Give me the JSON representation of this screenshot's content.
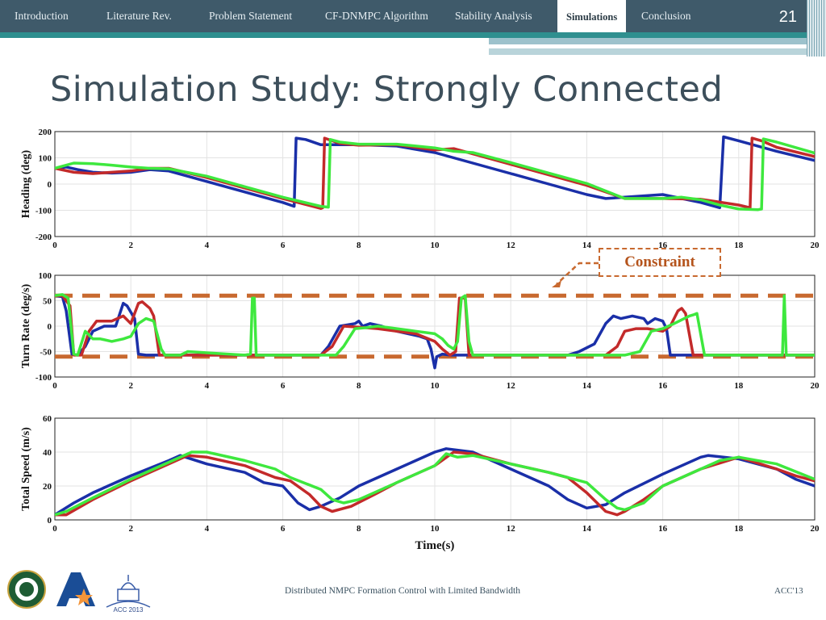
{
  "nav": {
    "items": [
      {
        "label": "Introduction",
        "active": false
      },
      {
        "label": "Literature Rev.",
        "active": false
      },
      {
        "label": "Problem Statement",
        "active": false
      },
      {
        "label": "CF-DNMPC Algorithm",
        "active": false
      },
      {
        "label": "Stability Analysis",
        "active": false
      },
      {
        "label": "Simulations",
        "active": true
      },
      {
        "label": "Conclusion",
        "active": false
      }
    ],
    "slide_number": "21"
  },
  "title": "Simulation Study: Strongly Connected",
  "annotation": "Constraint",
  "footer": {
    "text": "Distributed NMPC Formation Control with Limited Bandwidth",
    "right": "ACC'13"
  },
  "logos": {
    "acc_label": "ACC 2013"
  },
  "colors": {
    "blue": "#1a2fa8",
    "red": "#c32a2a",
    "green": "#3ee83e",
    "constraint": "#c8692f",
    "header": "#3f5a6a",
    "teal": "#2f8f8f"
  },
  "chart_data": [
    {
      "type": "line",
      "ylabel": "Heading (deg)",
      "xlabel": "",
      "xlim": [
        0,
        20
      ],
      "ylim": [
        -200,
        200
      ],
      "yticks": [
        -200,
        -100,
        0,
        100,
        200
      ],
      "xticks": [
        0,
        2,
        4,
        6,
        8,
        10,
        12,
        14,
        16,
        18,
        20
      ],
      "grid": true,
      "series": [
        {
          "color": "blue",
          "x": [
            0,
            0.3,
            0.6,
            1,
            1.5,
            2,
            2.5,
            3,
            4,
            5,
            6,
            6.3,
            6.35,
            6.6,
            7,
            8,
            9,
            10,
            11,
            12,
            13,
            14,
            14.5,
            15,
            15.5,
            16,
            16.5,
            17,
            17.5,
            17.6,
            18,
            19,
            20
          ],
          "y": [
            60,
            65,
            55,
            45,
            42,
            45,
            55,
            50,
            10,
            -30,
            -70,
            -85,
            175,
            170,
            150,
            150,
            145,
            120,
            80,
            40,
            0,
            -40,
            -55,
            -50,
            -45,
            -40,
            -55,
            -70,
            -90,
            180,
            165,
            125,
            90
          ]
        },
        {
          "color": "red",
          "x": [
            0,
            0.5,
            1,
            1.5,
            2,
            2.5,
            3,
            4,
            5,
            6,
            7,
            7.05,
            7.1,
            7.5,
            8,
            9,
            10,
            10.5,
            11,
            12,
            13,
            14,
            15,
            16,
            17,
            18,
            18.3,
            18.35,
            18.6,
            19,
            20
          ],
          "y": [
            60,
            45,
            40,
            45,
            50,
            60,
            60,
            25,
            -15,
            -55,
            -93,
            -90,
            175,
            155,
            148,
            150,
            130,
            135,
            115,
            75,
            35,
            -5,
            -55,
            -55,
            -58,
            -80,
            -90,
            175,
            165,
            140,
            105
          ]
        },
        {
          "color": "green",
          "x": [
            0,
            0.5,
            1,
            1.5,
            2,
            2.5,
            3,
            4,
            5,
            6,
            7,
            7.2,
            7.25,
            7.5,
            8,
            9,
            10,
            10.5,
            11,
            12,
            13,
            14,
            15,
            16,
            16.5,
            17,
            17.5,
            18,
            18.5,
            18.6,
            18.65,
            19,
            20
          ],
          "y": [
            60,
            80,
            78,
            72,
            65,
            60,
            58,
            30,
            -10,
            -50,
            -85,
            -88,
            170,
            160,
            152,
            152,
            138,
            125,
            120,
            82,
            42,
            2,
            -55,
            -55,
            -50,
            -60,
            -80,
            -95,
            -98,
            -95,
            172,
            160,
            118
          ]
        }
      ]
    },
    {
      "type": "line",
      "ylabel": "Turn Rate (deg/s)",
      "xlabel": "",
      "xlim": [
        0,
        20
      ],
      "ylim": [
        -100,
        100
      ],
      "yticks": [
        -100,
        -50,
        0,
        50,
        100
      ],
      "xticks": [
        0,
        2,
        4,
        6,
        8,
        10,
        12,
        14,
        16,
        18,
        20
      ],
      "grid": true,
      "constraints": [
        60,
        -60
      ],
      "series": [
        {
          "color": "blue",
          "x": [
            0,
            0.2,
            0.3,
            0.45,
            0.6,
            0.8,
            1,
            1.3,
            1.6,
            1.8,
            1.9,
            2.1,
            2.2,
            2.4,
            2.8,
            7,
            7.2,
            7.5,
            7.9,
            8,
            8.1,
            8.3,
            8.6,
            9,
            9.6,
            9.8,
            9.9,
            10,
            10.05,
            10.2,
            10.4,
            12,
            13.5,
            13.8,
            14.2,
            14.5,
            14.7,
            14.9,
            15.2,
            15.5,
            15.6,
            15.8,
            16,
            16.1,
            16.2,
            16.4,
            16.6,
            20
          ],
          "y": [
            60,
            58,
            30,
            -55,
            -57,
            -40,
            -10,
            0,
            0,
            45,
            40,
            15,
            -55,
            -57,
            -57,
            -57,
            -40,
            0,
            5,
            10,
            0,
            5,
            0,
            -10,
            -20,
            -25,
            -45,
            -82,
            -60,
            -55,
            -57,
            -57,
            -57,
            -50,
            -35,
            5,
            20,
            15,
            20,
            15,
            5,
            15,
            10,
            -5,
            -57,
            -57,
            -57,
            -57
          ]
        },
        {
          "color": "red",
          "x": [
            0,
            0.2,
            0.4,
            0.5,
            0.7,
            0.9,
            1.1,
            1.5,
            1.8,
            2,
            2.2,
            2.3,
            2.5,
            2.6,
            2.75,
            2.9,
            7,
            7.3,
            7.6,
            8,
            8.5,
            9,
            9.5,
            10,
            10.2,
            10.4,
            10.55,
            10.65,
            10.8,
            10.9,
            11,
            14.5,
            14.8,
            15,
            15.3,
            15.6,
            16,
            16.2,
            16.4,
            16.5,
            16.6,
            16.8,
            17,
            17.2,
            20
          ],
          "y": [
            60,
            60,
            40,
            -57,
            -57,
            -10,
            10,
            10,
            20,
            5,
            45,
            48,
            35,
            20,
            -57,
            -57,
            -57,
            -40,
            0,
            -2,
            -5,
            -10,
            -15,
            -30,
            -45,
            -57,
            -50,
            55,
            55,
            -57,
            -57,
            -57,
            -40,
            -10,
            -5,
            -5,
            -10,
            0,
            30,
            35,
            25,
            -57,
            -57,
            -57,
            -57
          ]
        },
        {
          "color": "green",
          "x": [
            0,
            0.2,
            0.35,
            0.5,
            0.6,
            0.8,
            1,
            1.2,
            1.5,
            1.8,
            2,
            2.2,
            2.4,
            2.6,
            2.8,
            2.9,
            3.3,
            3.5,
            5,
            5.15,
            5.2,
            5.25,
            5.3,
            5.45,
            7,
            7.4,
            7.6,
            7.9,
            8.2,
            8.5,
            9,
            9.5,
            10,
            10.2,
            10.35,
            10.5,
            10.6,
            10.7,
            10.8,
            10.9,
            11,
            15,
            15.4,
            15.7,
            16,
            16.3,
            16.7,
            16.8,
            16.9,
            17.1,
            17.2,
            17.4,
            19,
            19.15,
            19.2,
            19.25,
            19.4,
            20
          ],
          "y": [
            60,
            62,
            55,
            -55,
            -57,
            -10,
            -25,
            -25,
            -30,
            -25,
            -20,
            5,
            15,
            10,
            -45,
            -57,
            -57,
            -50,
            -57,
            -55,
            55,
            55,
            -57,
            -57,
            -57,
            -57,
            -40,
            -5,
            -3,
            0,
            -5,
            -10,
            -15,
            -25,
            -38,
            -45,
            -30,
            55,
            60,
            -30,
            -57,
            -57,
            -50,
            -10,
            -5,
            5,
            20,
            22,
            25,
            -57,
            -57,
            -57,
            -57,
            -57,
            60,
            -57,
            -57,
            -57
          ]
        }
      ]
    },
    {
      "type": "line",
      "ylabel": "Total Speed (m/s)",
      "xlabel": "Time(s)",
      "xlim": [
        0,
        20
      ],
      "ylim": [
        0,
        60
      ],
      "yticks": [
        0,
        20,
        40,
        60
      ],
      "xticks": [
        0,
        2,
        4,
        6,
        8,
        10,
        12,
        14,
        16,
        18,
        20
      ],
      "grid": true,
      "series": [
        {
          "color": "blue",
          "x": [
            0,
            0.5,
            1,
            2,
            3,
            3.3,
            4,
            5,
            5.5,
            6,
            6.4,
            6.7,
            7,
            7.5,
            8,
            9,
            10,
            10.3,
            11,
            12,
            12.5,
            13,
            13.5,
            14,
            14.5,
            15,
            16,
            17,
            17.2,
            18,
            19,
            19.5,
            20
          ],
          "y": [
            3,
            10,
            16,
            26,
            35,
            38,
            33,
            28,
            22,
            20,
            10,
            6,
            8,
            13,
            20,
            30,
            40,
            42,
            40,
            30,
            25,
            20,
            12,
            7,
            9,
            16,
            27,
            37,
            38,
            36,
            30,
            24,
            20
          ]
        },
        {
          "color": "red",
          "x": [
            0,
            0.3,
            1,
            2,
            3,
            3.5,
            4,
            5,
            5.8,
            6.2,
            6.7,
            7,
            7.3,
            7.8,
            8.5,
            9,
            10,
            10.5,
            11,
            12,
            13,
            13.5,
            14,
            14.5,
            14.8,
            15,
            15.5,
            16,
            17,
            18,
            19,
            19.5,
            20
          ],
          "y": [
            3,
            3,
            12,
            23,
            33,
            38,
            37,
            32,
            25,
            23,
            15,
            8,
            5,
            8,
            16,
            22,
            32,
            40,
            39,
            33,
            28,
            25,
            16,
            5,
            3,
            5,
            12,
            20,
            30,
            37,
            30,
            26,
            23
          ]
        },
        {
          "color": "green",
          "x": [
            0,
            0.3,
            1,
            2,
            3,
            3.6,
            4,
            5,
            5.8,
            6.2,
            7,
            7.3,
            7.6,
            8,
            9,
            10,
            10.3,
            10.6,
            11,
            12,
            13,
            14,
            14.5,
            14.8,
            15,
            15.5,
            16,
            17,
            17.5,
            18,
            19,
            20
          ],
          "y": [
            3,
            5,
            13,
            24,
            34,
            40,
            40,
            35,
            30,
            25,
            18,
            12,
            10,
            12,
            22,
            32,
            39,
            37,
            38,
            33,
            28,
            22,
            12,
            7,
            6,
            10,
            20,
            30,
            35,
            37,
            33,
            24
          ]
        }
      ]
    }
  ]
}
